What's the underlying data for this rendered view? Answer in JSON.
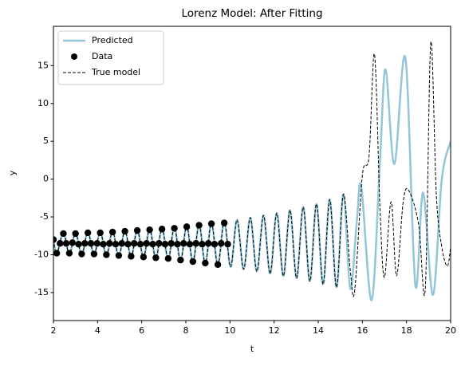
{
  "chart_data": {
    "type": "line",
    "title": "Lorenz Model: After Fitting",
    "xlabel": "t",
    "ylabel": "y",
    "xlim": [
      2,
      20
    ],
    "ylim": [
      -18.7,
      20.2
    ],
    "xticks": [
      2,
      4,
      6,
      8,
      10,
      12,
      14,
      16,
      18,
      20
    ],
    "yticks": [
      -15,
      -10,
      -5,
      0,
      5,
      10,
      15
    ],
    "legend": "upper left",
    "series": [
      {
        "name": "Predicted",
        "color": "#92c6d8",
        "style": "solid",
        "x": [
          2.0,
          2.15,
          2.45,
          2.72,
          3.0,
          3.28,
          3.56,
          3.84,
          4.12,
          4.4,
          4.68,
          4.96,
          5.24,
          5.52,
          5.8,
          6.08,
          6.36,
          6.64,
          6.92,
          7.2,
          7.48,
          7.76,
          8.04,
          8.32,
          8.6,
          8.88,
          9.16,
          9.45,
          9.74,
          10.03,
          10.32,
          10.62,
          10.92,
          11.22,
          11.52,
          11.82,
          12.12,
          12.42,
          12.72,
          13.02,
          13.32,
          13.62,
          13.92,
          14.22,
          14.52,
          14.83,
          15.14,
          15.45,
          15.75,
          15.95,
          16.42,
          16.8,
          17.05,
          17.45,
          17.95,
          18.4,
          18.75,
          19.2,
          19.6,
          20.0
        ],
        "values": [
          -8.0,
          -9.9,
          -7.1,
          -9.9,
          -7.1,
          -10.0,
          -7.0,
          -10.0,
          -7.0,
          -10.1,
          -6.9,
          -10.2,
          -6.8,
          -10.3,
          -6.7,
          -10.4,
          -6.6,
          -10.5,
          -6.5,
          -10.6,
          -6.4,
          -10.8,
          -6.2,
          -11.0,
          -6.0,
          -11.2,
          -5.8,
          -11.4,
          -5.6,
          -11.6,
          -5.4,
          -11.9,
          -5.1,
          -12.2,
          -4.8,
          -12.5,
          -4.5,
          -12.8,
          -4.1,
          -13.1,
          -3.7,
          -13.5,
          -3.3,
          -13.9,
          -2.7,
          -14.3,
          -2.0,
          -14.5,
          -5.5,
          -1.0,
          -16.0,
          2.5,
          14.5,
          2.0,
          16.0,
          -14.0,
          -1.8,
          -15.3,
          0.0,
          5.0
        ]
      },
      {
        "name": "Data",
        "color": "#000000",
        "style": "points",
        "x": [
          2.0,
          2.15,
          2.3,
          2.45,
          2.58,
          2.72,
          2.86,
          3.0,
          3.14,
          3.28,
          3.42,
          3.56,
          3.7,
          3.84,
          3.98,
          4.12,
          4.26,
          4.4,
          4.54,
          4.68,
          4.82,
          4.96,
          5.1,
          5.24,
          5.38,
          5.52,
          5.66,
          5.8,
          5.94,
          6.08,
          6.22,
          6.36,
          6.5,
          6.64,
          6.78,
          6.92,
          7.06,
          7.2,
          7.34,
          7.48,
          7.62,
          7.76,
          7.9,
          8.04,
          8.18,
          8.32,
          8.46,
          8.6,
          8.74,
          8.88,
          9.02,
          9.16,
          9.3,
          9.45,
          9.6,
          9.74,
          9.9
        ],
        "values": [
          -8.0,
          -9.8,
          -8.5,
          -7.2,
          -8.5,
          -9.8,
          -8.4,
          -7.2,
          -8.6,
          -9.9,
          -8.5,
          -7.1,
          -8.5,
          -9.9,
          -8.5,
          -7.1,
          -8.6,
          -10.0,
          -8.5,
          -7.0,
          -8.6,
          -10.1,
          -8.5,
          -6.9,
          -8.6,
          -10.2,
          -8.5,
          -6.8,
          -8.6,
          -10.3,
          -8.5,
          -6.7,
          -8.6,
          -10.4,
          -8.5,
          -6.6,
          -8.6,
          -10.5,
          -8.5,
          -6.5,
          -8.6,
          -10.7,
          -8.5,
          -6.3,
          -8.6,
          -10.9,
          -8.5,
          -6.1,
          -8.6,
          -11.1,
          -8.5,
          -5.9,
          -8.6,
          -11.3,
          -8.5,
          -5.8,
          -8.6
        ]
      },
      {
        "name": "True model",
        "color": "#000000",
        "style": "dashed",
        "x": [
          2.0,
          2.15,
          2.45,
          2.72,
          3.0,
          3.28,
          3.56,
          3.84,
          4.12,
          4.4,
          4.68,
          4.96,
          5.24,
          5.52,
          5.8,
          6.08,
          6.36,
          6.64,
          6.92,
          7.2,
          7.48,
          7.76,
          8.04,
          8.32,
          8.6,
          8.88,
          9.16,
          9.45,
          9.74,
          10.03,
          10.32,
          10.62,
          10.92,
          11.22,
          11.52,
          11.82,
          12.12,
          12.42,
          12.72,
          13.02,
          13.32,
          13.62,
          13.92,
          14.22,
          14.52,
          14.83,
          15.14,
          15.45,
          15.65,
          16.0,
          16.3,
          16.55,
          16.8,
          17.0,
          17.3,
          17.55,
          17.85,
          18.1,
          18.55,
          18.85,
          19.1,
          19.35,
          19.6,
          19.85,
          20.0
        ],
        "values": [
          -8.0,
          -9.9,
          -7.1,
          -9.9,
          -7.1,
          -10.0,
          -7.0,
          -10.0,
          -7.0,
          -10.1,
          -6.9,
          -10.2,
          -6.8,
          -10.3,
          -6.7,
          -10.4,
          -6.6,
          -10.5,
          -6.5,
          -10.6,
          -6.4,
          -10.8,
          -6.2,
          -11.0,
          -6.0,
          -11.2,
          -5.8,
          -11.4,
          -5.6,
          -11.6,
          -5.4,
          -11.9,
          -5.1,
          -12.2,
          -4.8,
          -12.5,
          -4.5,
          -12.8,
          -4.1,
          -13.1,
          -3.7,
          -13.5,
          -3.3,
          -13.9,
          -2.7,
          -14.3,
          -2.0,
          -12.0,
          -14.8,
          0.5,
          3.0,
          16.5,
          -4.0,
          -13.0,
          -3.0,
          -12.8,
          -3.0,
          -1.5,
          -6.0,
          -14.5,
          18.0,
          -2.0,
          -9.0,
          -11.5,
          -9.0
        ]
      }
    ]
  }
}
